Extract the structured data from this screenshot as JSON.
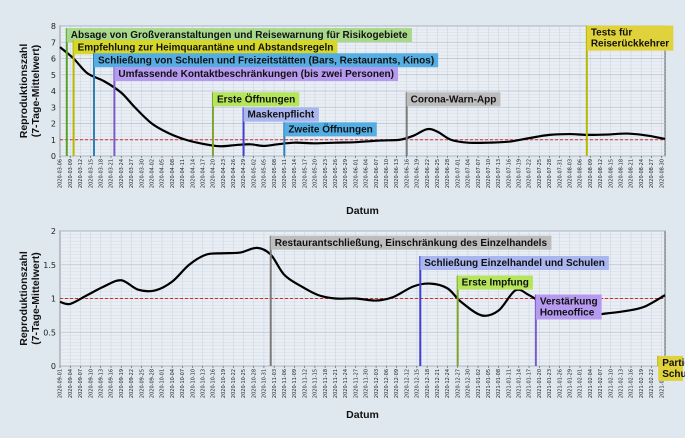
{
  "chart_data": [
    {
      "type": "line",
      "xlabel": "Datum",
      "ylabel": [
        "Reproduktionszahl",
        "(7-Tage-Mittelwert)"
      ],
      "ylim": [
        0,
        8
      ],
      "yticks": [
        0,
        1,
        2,
        3,
        4,
        5,
        6,
        7,
        8
      ],
      "grid": true,
      "reference_line": {
        "y": 1,
        "style": "dashed",
        "color": "#d42a2a"
      },
      "x_range": [
        "2020-03-06",
        "2020-08-31"
      ],
      "xtick_start": "2020-03-06",
      "xtick_every_days": 3,
      "series": [
        {
          "color": "#000000",
          "points": [
            [
              "2020-03-06",
              6.7
            ],
            [
              "2020-03-10",
              6.0
            ],
            [
              "2020-03-14",
              5.1
            ],
            [
              "2020-03-19",
              4.6
            ],
            [
              "2020-03-24",
              3.9
            ],
            [
              "2020-03-28",
              3.0
            ],
            [
              "2020-04-02",
              2.0
            ],
            [
              "2020-04-07",
              1.4
            ],
            [
              "2020-04-12",
              1.0
            ],
            [
              "2020-04-17",
              0.75
            ],
            [
              "2020-04-22",
              0.6
            ],
            [
              "2020-04-27",
              0.68
            ],
            [
              "2020-05-01",
              0.72
            ],
            [
              "2020-05-05",
              0.62
            ],
            [
              "2020-05-09",
              0.72
            ],
            [
              "2020-05-14",
              0.82
            ],
            [
              "2020-05-20",
              0.78
            ],
            [
              "2020-05-26",
              0.82
            ],
            [
              "2020-06-01",
              0.85
            ],
            [
              "2020-06-08",
              0.95
            ],
            [
              "2020-06-14",
              1.0
            ],
            [
              "2020-06-18",
              1.25
            ],
            [
              "2020-06-22",
              1.65
            ],
            [
              "2020-06-25",
              1.5
            ],
            [
              "2020-06-29",
              1.0
            ],
            [
              "2020-07-04",
              0.82
            ],
            [
              "2020-07-10",
              0.82
            ],
            [
              "2020-07-16",
              0.88
            ],
            [
              "2020-07-22",
              1.1
            ],
            [
              "2020-07-28",
              1.3
            ],
            [
              "2020-08-03",
              1.35
            ],
            [
              "2020-08-08",
              1.3
            ],
            [
              "2020-08-14",
              1.32
            ],
            [
              "2020-08-20",
              1.38
            ],
            [
              "2020-08-26",
              1.25
            ],
            [
              "2020-08-31",
              1.05
            ]
          ]
        }
      ],
      "events": [
        {
          "date": "2020-03-08",
          "label": "Absage von Großveranstaltungen und Reisewarnung für Risikogebiete",
          "line_color": "#5aa02c",
          "box_color": "#a8d98a",
          "y": 7.75
        },
        {
          "date": "2020-03-10",
          "label": "Empfehlung zur Heimquarantäne und Abstandsregeln",
          "line_color": "#b8b800",
          "box_color": "#d7d728",
          "y": 7.0
        },
        {
          "date": "2020-03-16",
          "label": "Schließung von Schulen und Freizeitstätten (Bars, Restaurants, Kinos)",
          "line_color": "#2f7fb5",
          "box_color": "#54aee3",
          "y": 6.2
        },
        {
          "date": "2020-03-22",
          "label": "Umfassende Kontaktbeschränkungen (bis zwei Personen)",
          "line_color": "#7a5bc8",
          "box_color": "#b69aef",
          "y": 5.35
        },
        {
          "date": "2020-04-20",
          "label": "Erste Öffnungen",
          "line_color": "#7ea52a",
          "box_color": "#b4e55a",
          "y": 3.8
        },
        {
          "date": "2020-04-29",
          "label": "Maskenpflicht",
          "line_color": "#3f3fd0",
          "box_color": "#a9b6ef",
          "y": 2.85
        },
        {
          "date": "2020-05-11",
          "label": "Zweite Öffnungen",
          "line_color": "#2f7fb5",
          "box_color": "#54aee3",
          "y": 1.95
        },
        {
          "date": "2020-06-16",
          "label": "Corona-Warn-App",
          "line_color": "#7a7a7a",
          "box_color": "#bdbdbd",
          "y": 3.8
        },
        {
          "date": "2020-08-08",
          "label": "Tests für\nReiserückkehrer",
          "line_color": "#b8b800",
          "box_color": "#e0d23a",
          "y": 7.9
        }
      ]
    },
    {
      "type": "line",
      "xlabel": "Datum",
      "ylabel": [
        "Reproduktionszahl",
        "(7-Tage-Mittelwert)"
      ],
      "ylim": [
        0,
        2
      ],
      "yticks": [
        0,
        0.5,
        1,
        1.5,
        2
      ],
      "grid": true,
      "reference_line": {
        "y": 1,
        "style": "dashed",
        "color": "#d42a2a"
      },
      "x_range": [
        "2020-09-01",
        "2021-02-26"
      ],
      "xtick_start": "2020-09-01",
      "xtick_every_days": 3,
      "series": [
        {
          "color": "#000000",
          "points": [
            [
              "2020-09-01",
              0.95
            ],
            [
              "2020-09-04",
              0.92
            ],
            [
              "2020-09-09",
              1.05
            ],
            [
              "2020-09-14",
              1.18
            ],
            [
              "2020-09-19",
              1.27
            ],
            [
              "2020-09-24",
              1.13
            ],
            [
              "2020-09-29",
              1.12
            ],
            [
              "2020-10-04",
              1.25
            ],
            [
              "2020-10-09",
              1.5
            ],
            [
              "2020-10-14",
              1.65
            ],
            [
              "2020-10-19",
              1.67
            ],
            [
              "2020-10-24",
              1.68
            ],
            [
              "2020-10-29",
              1.75
            ],
            [
              "2020-11-02",
              1.65
            ],
            [
              "2020-11-06",
              1.35
            ],
            [
              "2020-11-11",
              1.18
            ],
            [
              "2020-11-16",
              1.05
            ],
            [
              "2020-11-21",
              1.0
            ],
            [
              "2020-11-27",
              1.0
            ],
            [
              "2020-12-03",
              0.97
            ],
            [
              "2020-12-08",
              1.02
            ],
            [
              "2020-12-14",
              1.18
            ],
            [
              "2020-12-19",
              1.22
            ],
            [
              "2020-12-24",
              1.15
            ],
            [
              "2020-12-28",
              0.95
            ],
            [
              "2021-01-03",
              0.75
            ],
            [
              "2021-01-08",
              0.82
            ],
            [
              "2021-01-13",
              1.12
            ],
            [
              "2021-01-17",
              1.05
            ],
            [
              "2021-01-22",
              0.9
            ],
            [
              "2021-01-28",
              0.8
            ],
            [
              "2021-02-03",
              0.75
            ],
            [
              "2021-02-09",
              0.78
            ],
            [
              "2021-02-15",
              0.82
            ],
            [
              "2021-02-20",
              0.88
            ],
            [
              "2021-02-26",
              1.05
            ]
          ]
        }
      ],
      "events": [
        {
          "date": "2020-11-02",
          "label": "Restaurantschließung, Einschränkung des Einzelhandels",
          "line_color": "#7a7a7a",
          "box_color": "#bdbdbd",
          "y": 1.9
        },
        {
          "date": "2020-12-16",
          "label": "Schließung Einzelhandel und Schulen",
          "line_color": "#3f3fd0",
          "box_color": "#a9b6ef",
          "y": 1.6
        },
        {
          "date": "2020-12-27",
          "label": "Erste Impfung",
          "line_color": "#7ea52a",
          "box_color": "#b4e55a",
          "y": 1.31
        },
        {
          "date": "2021-01-19",
          "label": "Verstärkung\nHomeoffice",
          "line_color": "#7a5bc8",
          "box_color": "#b69aef",
          "y": 1.03
        },
        {
          "date": "2021-02-24",
          "label": "Partielle\nSchulöffnung",
          "line_color": "#b8b800",
          "box_color": "#e0d23a",
          "y": 0.12
        }
      ]
    }
  ]
}
